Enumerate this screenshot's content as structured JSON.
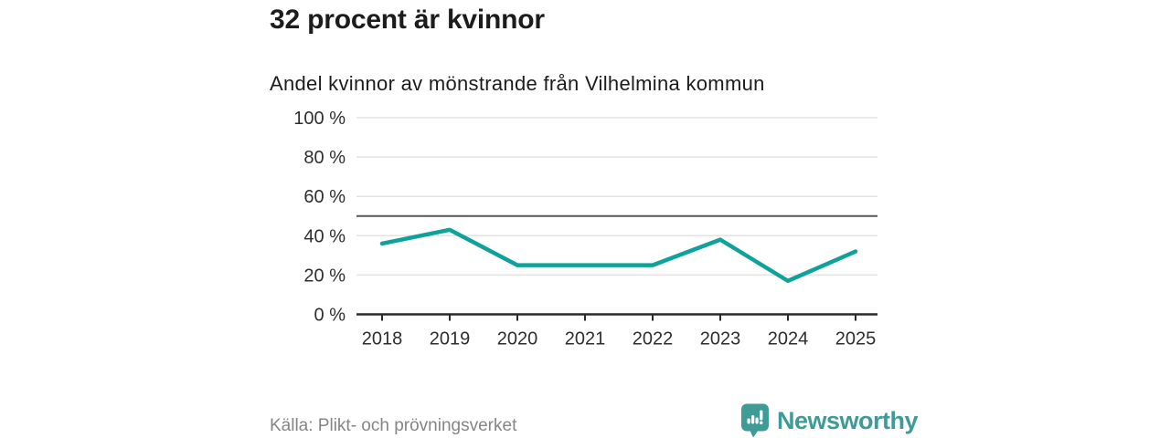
{
  "header": {
    "title": "32 procent är kvinnor",
    "subtitle": "Andel kvinnor av mönstrande från Vilhelmina kommun"
  },
  "chart_data": {
    "type": "line",
    "title": "Andel kvinnor av mönstrande från Vilhelmina kommun",
    "x": [
      2018,
      2019,
      2020,
      2021,
      2022,
      2023,
      2024,
      2025
    ],
    "series": [
      {
        "name": "Andel kvinnor",
        "unit": "%",
        "values": [
          36,
          43,
          25,
          25,
          25,
          38,
          17,
          32
        ]
      }
    ],
    "xlabel": "",
    "ylabel": "",
    "ylim": [
      0,
      100
    ],
    "yticks": [
      0,
      20,
      40,
      60,
      80,
      100
    ],
    "ytick_format": "{v} %",
    "reference_line": 50,
    "grid": true,
    "legend": "none"
  },
  "footer": {
    "source": "Källa: Plikt- och prövningsverket",
    "brand": "Newsworthy"
  },
  "colors": {
    "accent_teal": "#0fa29a",
    "brand_teal": "#3e9b95",
    "grid_line": "#e3e3e3",
    "reference_line": "#555555",
    "axis_line": "#2a2a2a",
    "tick_label": "#2e2e2e",
    "heading_text": "#1c1c1c",
    "source_text": "#858585"
  },
  "icons": {
    "brand_icon": "newsworthy-speech-bubble-bar-chart"
  }
}
